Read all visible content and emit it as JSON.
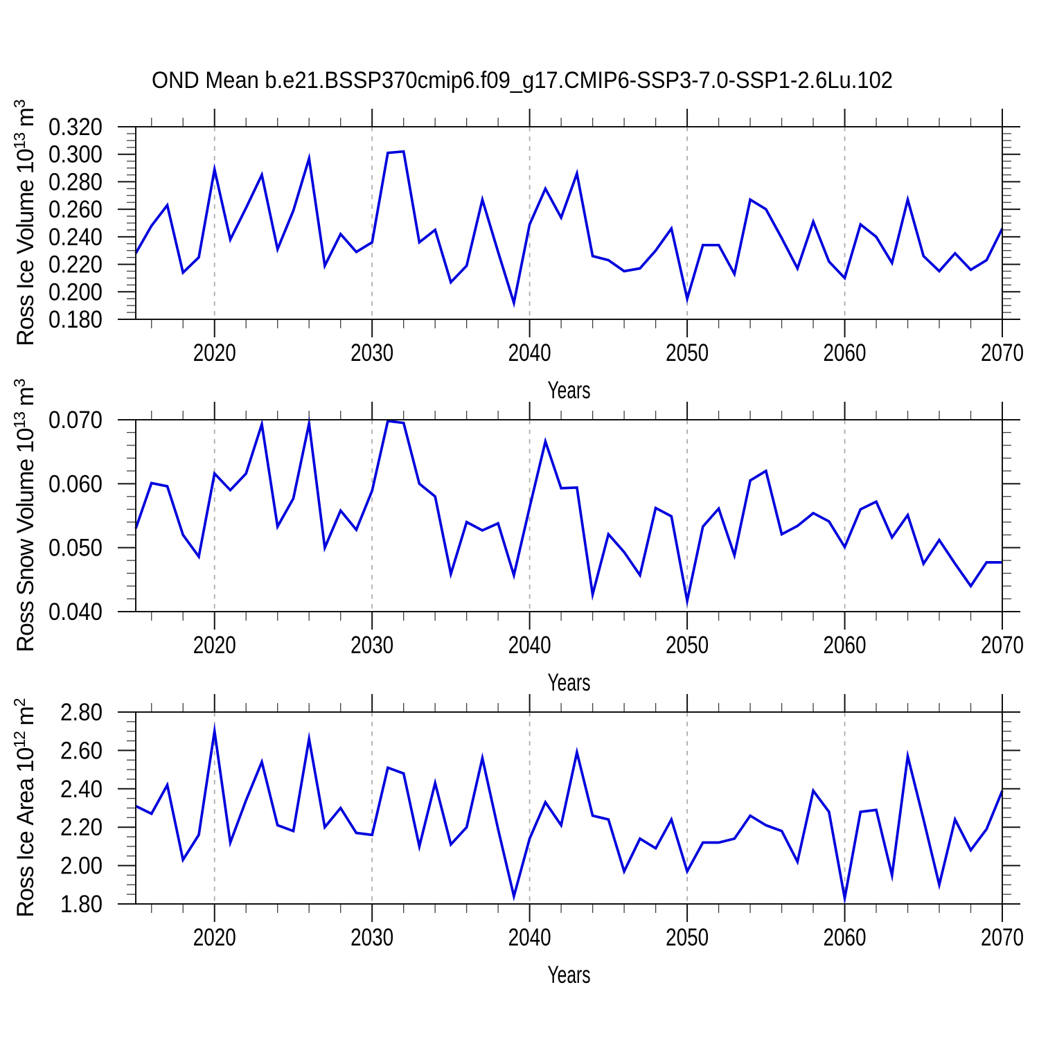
{
  "title": "OND Mean b.e21.BSSP370cmip6.f09_g17.CMIP6-SSP3-7.0-SSP1-2.6Lu.102",
  "figure": {
    "background": "#ffffff",
    "line_color": "#0000dd",
    "axis_color": "#111111",
    "grid_color": "#adadad",
    "grid_style": "vertical-dashed-at-decades",
    "legend": "none"
  },
  "chart_data": [
    {
      "type": "line",
      "panel": 1,
      "ylabel_text": "Ross Ice Volume 10^13 m^3",
      "ylabel_parts": [
        {
          "t": "Ross Ice Volume 10"
        },
        {
          "t": "13",
          "sup": true
        },
        {
          "t": " m"
        },
        {
          "t": "3",
          "sup": true
        }
      ],
      "xlabel": "Years",
      "x_range": [
        2015,
        2070
      ],
      "x_step": 1,
      "xticks": [
        2020,
        2030,
        2040,
        2050,
        2060,
        2070
      ],
      "xtick_labels": [
        "2020",
        "2030",
        "2040",
        "2050",
        "2060",
        "2070"
      ],
      "xminor_step": 2,
      "dashed_gridlines_x": [
        2020,
        2030,
        2040,
        2050,
        2060
      ],
      "ylim": [
        0.18,
        0.32
      ],
      "ymajor_step": 0.02,
      "yminor_step": 0.005,
      "ytick_labels": [
        "0.180",
        "0.200",
        "0.220",
        "0.240",
        "0.260",
        "0.280",
        "0.300",
        "0.320"
      ],
      "values": [
        0.228,
        0.248,
        0.263,
        0.214,
        0.225,
        0.289,
        0.238,
        0.261,
        0.285,
        0.231,
        0.259,
        0.297,
        0.219,
        0.242,
        0.229,
        0.236,
        0.301,
        0.302,
        0.236,
        0.245,
        0.207,
        0.219,
        0.267,
        0.229,
        0.192,
        0.249,
        0.275,
        0.254,
        0.286,
        0.226,
        0.223,
        0.215,
        0.217,
        0.23,
        0.246,
        0.195,
        0.234,
        0.234,
        0.213,
        0.267,
        0.26,
        0.239,
        0.217,
        0.251,
        0.222,
        0.21,
        0.249,
        0.24,
        0.221,
        0.267,
        0.226,
        0.215,
        0.228,
        0.216,
        0.223,
        0.246
      ]
    },
    {
      "type": "line",
      "panel": 2,
      "ylabel_text": "Ross Snow Volume 10^13 m^3",
      "ylabel_parts": [
        {
          "t": "Ross Snow Volume 10"
        },
        {
          "t": "13",
          "sup": true
        },
        {
          "t": " m"
        },
        {
          "t": "3",
          "sup": true
        }
      ],
      "xlabel": "Years",
      "x_range": [
        2015,
        2070
      ],
      "x_step": 1,
      "xticks": [
        2020,
        2030,
        2040,
        2050,
        2060,
        2070
      ],
      "xtick_labels": [
        "2020",
        "2030",
        "2040",
        "2050",
        "2060",
        "2070"
      ],
      "xminor_step": 2,
      "dashed_gridlines_x": [
        2020,
        2030,
        2040,
        2050,
        2060
      ],
      "ylim": [
        0.04,
        0.07
      ],
      "ymajor_step": 0.01,
      "yminor_step": 0.002,
      "ytick_labels": [
        "0.040",
        "0.050",
        "0.060",
        "0.070"
      ],
      "values": [
        0.053,
        0.0601,
        0.0596,
        0.052,
        0.0486,
        0.0616,
        0.059,
        0.0616,
        0.0693,
        0.0533,
        0.0577,
        0.0694,
        0.05,
        0.0558,
        0.0528,
        0.0589,
        0.0698,
        0.0695,
        0.06,
        0.058,
        0.0459,
        0.054,
        0.0527,
        0.0538,
        0.0457,
        0.0563,
        0.0666,
        0.0593,
        0.0594,
        0.0427,
        0.0521,
        0.0493,
        0.0457,
        0.0562,
        0.0549,
        0.0417,
        0.0533,
        0.0561,
        0.0488,
        0.0605,
        0.062,
        0.0521,
        0.0534,
        0.0554,
        0.0541,
        0.0501,
        0.056,
        0.0572,
        0.0516,
        0.0551,
        0.0475,
        0.0512,
        0.0475,
        0.044,
        0.0477,
        0.0477
      ]
    },
    {
      "type": "line",
      "panel": 3,
      "ylabel_text": "Ross Ice Area 10^12 m^2",
      "ylabel_parts": [
        {
          "t": "Ross Ice Area 10"
        },
        {
          "t": "12",
          "sup": true
        },
        {
          "t": " m"
        },
        {
          "t": "2",
          "sup": true
        }
      ],
      "xlabel": "Years",
      "x_range": [
        2015,
        2070
      ],
      "x_step": 1,
      "xticks": [
        2020,
        2030,
        2040,
        2050,
        2060,
        2070
      ],
      "xtick_labels": [
        "2020",
        "2030",
        "2040",
        "2050",
        "2060",
        "2070"
      ],
      "xminor_step": 2,
      "dashed_gridlines_x": [
        2020,
        2030,
        2040,
        2050,
        2060
      ],
      "ylim": [
        1.8,
        2.8
      ],
      "ymajor_step": 0.2,
      "yminor_step": 0.05,
      "ytick_labels": [
        "1.80",
        "2.00",
        "2.20",
        "2.40",
        "2.60",
        "2.80"
      ],
      "values": [
        2.31,
        2.27,
        2.42,
        2.03,
        2.16,
        2.7,
        2.12,
        2.34,
        2.54,
        2.21,
        2.18,
        2.66,
        2.2,
        2.3,
        2.17,
        2.16,
        2.51,
        2.48,
        2.1,
        2.43,
        2.11,
        2.2,
        2.56,
        2.19,
        1.84,
        2.14,
        2.33,
        2.21,
        2.59,
        2.26,
        2.24,
        1.97,
        2.14,
        2.09,
        2.24,
        1.97,
        2.12,
        2.12,
        2.14,
        2.26,
        2.21,
        2.18,
        2.02,
        2.39,
        2.28,
        1.83,
        2.28,
        2.29,
        1.95,
        2.57,
        2.24,
        1.9,
        2.24,
        2.08,
        2.19,
        2.39
      ]
    }
  ]
}
